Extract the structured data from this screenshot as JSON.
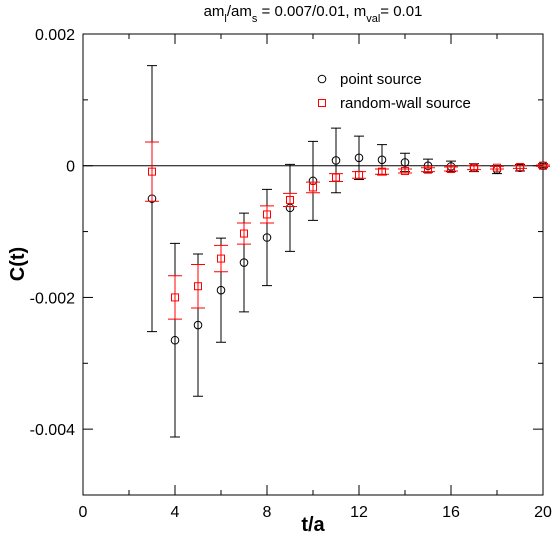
{
  "chart_data": {
    "type": "scatter",
    "title": [
      "am",
      "l",
      "/am",
      "s",
      " = 0.007/0.01, m",
      "val",
      "= 0.01"
    ],
    "x_label": "t/a",
    "y_label": "C(t)",
    "xlim": [
      0,
      20
    ],
    "xticks": [
      0,
      4,
      8,
      12,
      16,
      20
    ],
    "ylim": [
      -0.005,
      0.002
    ],
    "yticks": [
      -0.004,
      -0.002,
      0,
      0.002
    ],
    "zero_line": true,
    "legend": "upper right",
    "series": [
      {
        "name": "point source",
        "color": "#000000",
        "marker": "circle",
        "x": [
          3,
          4,
          5,
          6,
          7,
          8,
          9,
          10,
          11,
          12,
          13,
          14,
          15,
          16,
          17,
          18,
          19,
          20
        ],
        "values": [
          -0.0005,
          -0.00265,
          -0.00242,
          -0.00189,
          -0.00147,
          -0.00109,
          -0.00064,
          -0.00023,
          8e-05,
          0.00012,
          9e-05,
          5e-05,
          0,
          -1e-05,
          -3e-05,
          -6e-05,
          -3e-05,
          0
        ],
        "errors": [
          0.00202,
          0.00147,
          0.00108,
          0.00079,
          0.00075,
          0.00073,
          0.00066,
          0.0006,
          0.00049,
          0.00033,
          0.00023,
          0.00014,
          0.0001,
          8e-05,
          6e-05,
          6e-05,
          5e-05,
          3e-05
        ]
      },
      {
        "name": "random-wall source",
        "color": "#ff0000",
        "marker": "square",
        "x": [
          3,
          4,
          5,
          6,
          7,
          8,
          9,
          10,
          11,
          12,
          13,
          14,
          15,
          16,
          17,
          18,
          19,
          20
        ],
        "values": [
          -9e-05,
          -0.002,
          -0.00183,
          -0.00141,
          -0.00103,
          -0.00074,
          -0.00052,
          -0.00033,
          -0.00018,
          -0.00014,
          -9e-05,
          -8e-05,
          -6e-05,
          -5e-05,
          -3e-05,
          -3e-05,
          -2e-05,
          0
        ],
        "errors": [
          0.00045,
          0.00033,
          0.00033,
          0.0002,
          0.00016,
          0.00013,
          0.0001,
          8e-05,
          6e-05,
          5e-05,
          4e-05,
          3e-05,
          3e-05,
          3e-05,
          3e-05,
          2e-05,
          2e-05,
          1e-05
        ]
      }
    ]
  }
}
